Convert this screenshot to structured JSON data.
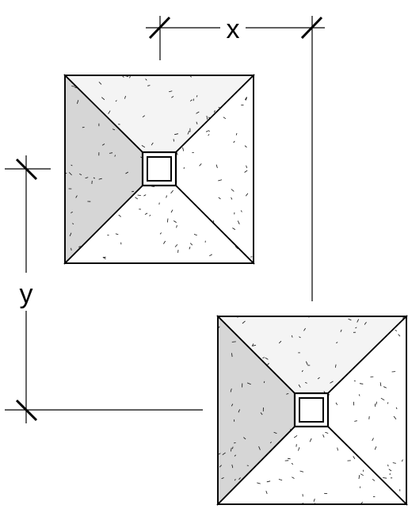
{
  "labels": {
    "x_dimension": "x",
    "y_dimension": "y"
  },
  "footings": [
    {
      "id": "footing-top-left"
    },
    {
      "id": "footing-bottom-right"
    }
  ],
  "colors": {
    "line": "#000000",
    "left_face": "#d6d6d6",
    "top_face": "#f4f4f4",
    "other_faces": "#ffffff",
    "speckle": "#111111"
  }
}
